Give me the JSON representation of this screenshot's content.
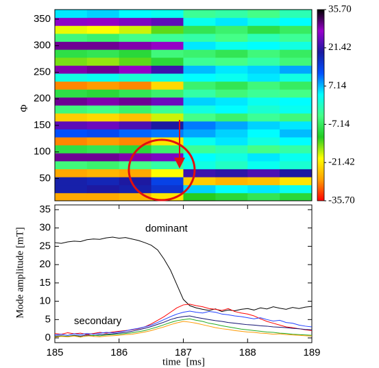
{
  "chart_data": [
    {
      "type": "heatmap",
      "ylabel": "Φ",
      "xlim": [
        185,
        189
      ],
      "ylim": [
        8,
        368
      ],
      "yticks": [
        50,
        100,
        150,
        200,
        250,
        300,
        350
      ],
      "x_edges": [
        185,
        185.5,
        186,
        186.5,
        187,
        187.5,
        188,
        188.5,
        189
      ],
      "y_edges": [
        8,
        23,
        38,
        53,
        68,
        83,
        98,
        113,
        128,
        143,
        158,
        173,
        188,
        203,
        218,
        233,
        248,
        263,
        278,
        293,
        308,
        323,
        338,
        353,
        368
      ],
      "z": [
        [
          -27,
          -27,
          -26,
          -22,
          -12,
          -10,
          -8,
          -10
        ],
        [
          19,
          20,
          19,
          16,
          6,
          4,
          5,
          3
        ],
        [
          19,
          18,
          20,
          14,
          -24,
          -26,
          -25,
          -22
        ],
        [
          -27,
          -26,
          -27,
          -20,
          22,
          21,
          23,
          20
        ],
        [
          -5,
          -6,
          -4,
          -2,
          2,
          0,
          3,
          1
        ],
        [
          30,
          30,
          29,
          26,
          4,
          2,
          5,
          3
        ],
        [
          -9,
          -8,
          -10,
          -6,
          -3,
          -1,
          -4,
          -2
        ],
        [
          -29,
          -28,
          -29,
          -22,
          3,
          5,
          2,
          4
        ],
        [
          12,
          13,
          11,
          10,
          8,
          6,
          4,
          7
        ],
        [
          24,
          25,
          23,
          20,
          10,
          8,
          6,
          5
        ],
        [
          -24,
          -23,
          -25,
          -18,
          -4,
          -6,
          -3,
          -5
        ],
        [
          -5,
          -4,
          -6,
          -3,
          2,
          4,
          1,
          3
        ],
        [
          30,
          29,
          30,
          25,
          6,
          5,
          3,
          4
        ],
        [
          -9,
          -10,
          -8,
          -6,
          -2,
          -5,
          -3,
          -4
        ],
        [
          -29,
          -28,
          -29,
          -23,
          -6,
          -8,
          -5,
          -7
        ],
        [
          2,
          3,
          1,
          2,
          4,
          3,
          5,
          2
        ],
        [
          29,
          30,
          28,
          22,
          7,
          5,
          6,
          8
        ],
        [
          -15,
          -16,
          -14,
          -10,
          -3,
          -4,
          -2,
          -5
        ],
        [
          -9,
          -8,
          -10,
          -5,
          -6,
          -8,
          -5,
          -7
        ],
        [
          30,
          30,
          29,
          28,
          5,
          3,
          4,
          2
        ],
        [
          -5,
          -6,
          -4,
          -3,
          -2,
          -4,
          -1,
          -3
        ],
        [
          -19,
          -20,
          -18,
          -14,
          -8,
          -6,
          -9,
          -7
        ],
        [
          27,
          28,
          26,
          24,
          3,
          5,
          2,
          4
        ],
        [
          5,
          6,
          4,
          3,
          -3,
          -2,
          -4,
          -1
        ]
      ],
      "clim": [
        -35.7,
        35.7
      ],
      "colorscale": [
        "#ff0000",
        "#ffa000",
        "#ffff00",
        "#22cc22",
        "#44ff88",
        "#00ffff",
        "#0050ff",
        "#1a1aa0",
        "#9900cc",
        "#000000"
      ],
      "colorbar_ticks": [
        {
          "value": 35.7,
          "label": "35.70"
        },
        21.42,
        7.14,
        -7.14,
        -21.42,
        {
          "value": -35.7,
          "label": "-35.70"
        }
      ]
    },
    {
      "type": "line",
      "xlabel": "time [ms]",
      "ylabel": "Mode amplitude [mT]",
      "annotations": [
        "dominant",
        "secondary"
      ],
      "xlim": [
        185,
        189
      ],
      "ylim": [
        -1.3,
        36.3
      ],
      "xticks": [
        185,
        186,
        187,
        188,
        189
      ],
      "yticks": [
        0,
        5,
        10,
        15,
        20,
        25,
        30,
        35
      ],
      "x": [
        185.0,
        185.1,
        185.2,
        185.3,
        185.4,
        185.5,
        185.6,
        185.7,
        185.8,
        185.9,
        186.0,
        186.1,
        186.2,
        186.3,
        186.4,
        186.5,
        186.6,
        186.7,
        186.8,
        186.9,
        187.0,
        187.1,
        187.2,
        187.3,
        187.4,
        187.5,
        187.6,
        187.7,
        187.8,
        187.9,
        188.0,
        188.1,
        188.2,
        188.3,
        188.4,
        188.5,
        188.6,
        188.7,
        188.8,
        188.9,
        189.0
      ],
      "series": [
        {
          "color": "#000000",
          "values": [
            26.0,
            25.8,
            26.2,
            26.4,
            26.3,
            26.8,
            27.0,
            26.9,
            27.3,
            27.5,
            27.2,
            27.4,
            27.0,
            26.6,
            26.0,
            25.3,
            24.0,
            21.5,
            18.5,
            14.5,
            10.5,
            8.8,
            8.2,
            7.8,
            7.5,
            7.9,
            7.2,
            7.6,
            7.4,
            7.8,
            8.0,
            7.6,
            8.2,
            7.9,
            8.5,
            8.1,
            7.8,
            8.3,
            8.0,
            8.4,
            8.6
          ]
        },
        {
          "color": "#ff0000",
          "values": [
            1.2,
            1.0,
            1.4,
            1.1,
            1.3,
            0.9,
            1.2,
            1.5,
            1.3,
            1.6,
            1.8,
            2.0,
            2.2,
            2.5,
            3.0,
            3.8,
            4.8,
            5.8,
            7.0,
            8.2,
            9.0,
            9.2,
            8.8,
            8.5,
            8.0,
            7.8,
            7.5,
            8.0,
            7.2,
            6.8,
            6.5,
            6.0,
            5.2,
            4.5,
            4.0,
            3.5,
            3.0,
            2.8,
            2.5,
            2.2,
            2.0
          ]
        },
        {
          "color": "#2040ff",
          "values": [
            0.8,
            1.0,
            0.7,
            1.1,
            0.9,
            1.2,
            1.0,
            1.3,
            1.5,
            1.4,
            1.6,
            1.9,
            2.3,
            2.6,
            3.0,
            3.5,
            4.2,
            5.0,
            5.8,
            6.5,
            7.0,
            7.3,
            7.0,
            6.8,
            7.2,
            7.0,
            6.5,
            6.3,
            6.0,
            5.8,
            5.5,
            5.2,
            5.5,
            5.0,
            4.6,
            4.8,
            4.2,
            4.0,
            3.5,
            3.2,
            3.0
          ]
        },
        {
          "color": "#101070",
          "values": [
            0.5,
            0.6,
            0.4,
            0.7,
            0.5,
            0.8,
            0.6,
            0.9,
            1.0,
            1.1,
            1.3,
            1.5,
            1.8,
            2.2,
            2.6,
            3.1,
            3.7,
            4.3,
            5.0,
            5.5,
            5.8,
            6.0,
            5.6,
            5.3,
            5.0,
            4.7,
            4.5,
            4.2,
            4.0,
            3.8,
            3.6,
            3.5,
            3.3,
            3.2,
            3.0,
            2.9,
            2.8,
            2.6,
            2.5,
            2.3,
            2.2
          ]
        },
        {
          "color": "#22aa22",
          "values": [
            0.3,
            0.5,
            0.4,
            0.6,
            0.3,
            0.5,
            0.7,
            0.6,
            0.8,
            0.9,
            1.0,
            1.2,
            1.4,
            1.7,
            2.0,
            2.5,
            3.0,
            3.6,
            4.2,
            4.7,
            5.0,
            5.2,
            4.8,
            4.5,
            4.0,
            3.7,
            3.3,
            3.0,
            2.7,
            2.4,
            2.2,
            2.0,
            1.8,
            1.6,
            1.5,
            1.3,
            1.2,
            1.0,
            0.9,
            0.8,
            0.7
          ]
        },
        {
          "color": "#ff9900",
          "values": [
            0.2,
            0.4,
            0.3,
            0.5,
            0.2,
            0.6,
            0.4,
            0.3,
            0.5,
            0.6,
            0.7,
            0.9,
            1.0,
            1.3,
            1.6,
            2.0,
            2.5,
            3.0,
            3.6,
            4.1,
            4.5,
            4.3,
            4.0,
            3.6,
            3.2,
            2.8,
            2.5,
            2.3,
            2.0,
            1.8,
            1.6,
            1.5,
            1.3,
            1.2,
            1.0,
            1.1,
            0.9,
            0.8,
            0.7,
            0.6,
            0.5
          ]
        }
      ]
    }
  ]
}
